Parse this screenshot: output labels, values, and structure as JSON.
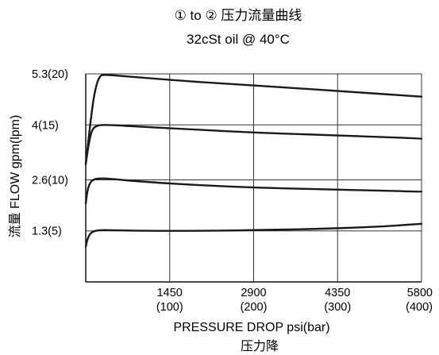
{
  "chart_data": {
    "type": "line",
    "title": "① to ② 压力流量曲线",
    "subtitle": "32cSt oil @ 40°C",
    "xlabel": "PRESSURE  DROP psi(bar)",
    "xlabel_cn": "压力降",
    "ylabel": "流量  FLOW  gpm(lpm)",
    "xlim": [
      0,
      5800
    ],
    "ylim": [
      0,
      5.3
    ],
    "grid": true,
    "x_ticks": [
      {
        "value": 1450,
        "label": "1450",
        "sub": "(100)"
      },
      {
        "value": 2900,
        "label": "2900",
        "sub": "(200)"
      },
      {
        "value": 4350,
        "label": "4350",
        "sub": "(300)"
      },
      {
        "value": 5800,
        "label": "5800",
        "sub": "(400)"
      }
    ],
    "y_ticks": [
      {
        "value": 1.3,
        "label": "1.3(5)"
      },
      {
        "value": 2.6,
        "label": "2.6(10)"
      },
      {
        "value": 4.0,
        "label": "4(15)"
      },
      {
        "value": 5.3,
        "label": "5.3(20)"
      }
    ],
    "series": [
      {
        "x": [
          0,
          30,
          80,
          150,
          250,
          400,
          1000,
          2000,
          3000,
          4000,
          5000,
          5800
        ],
        "y": [
          0.9,
          1.1,
          1.24,
          1.3,
          1.32,
          1.32,
          1.3,
          1.3,
          1.32,
          1.35,
          1.4,
          1.48
        ]
      },
      {
        "x": [
          0,
          30,
          80,
          150,
          250,
          400,
          1000,
          2000,
          3000,
          4000,
          5000,
          5800
        ],
        "y": [
          2.0,
          2.35,
          2.55,
          2.62,
          2.64,
          2.63,
          2.55,
          2.46,
          2.4,
          2.36,
          2.33,
          2.3
        ]
      },
      {
        "x": [
          0,
          50,
          100,
          160,
          250,
          400,
          1000,
          2000,
          3000,
          4000,
          5000,
          5800
        ],
        "y": [
          3.0,
          3.5,
          3.85,
          3.96,
          4.0,
          4.0,
          3.95,
          3.87,
          3.8,
          3.75,
          3.7,
          3.65
        ]
      },
      {
        "x": [
          0,
          100,
          150,
          200,
          250,
          300,
          600,
          1500,
          2500,
          3500,
          4500,
          5800
        ],
        "y": [
          3.0,
          4.3,
          4.8,
          5.1,
          5.25,
          5.28,
          5.25,
          5.14,
          5.04,
          4.95,
          4.85,
          4.72
        ]
      }
    ]
  }
}
